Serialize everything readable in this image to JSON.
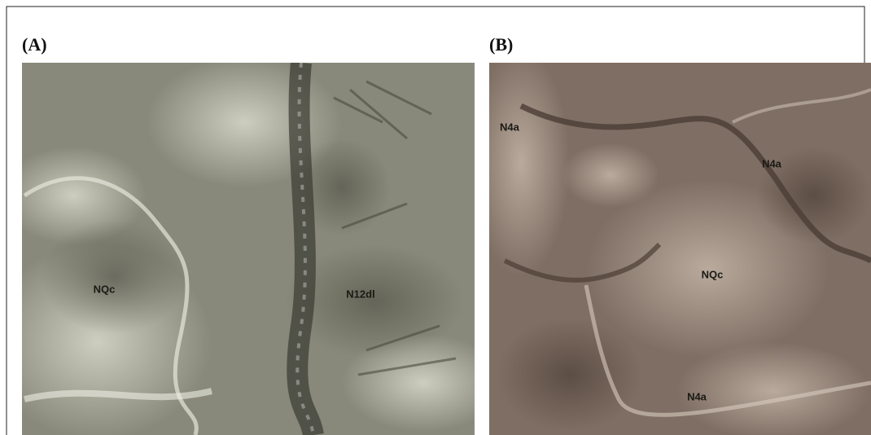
{
  "panels": [
    {
      "label": "(A)",
      "annotations": [
        "NQc",
        "N12dl"
      ]
    },
    {
      "label": "(B)",
      "annotations": [
        "N4a",
        "N4a",
        "NQc",
        "N4a"
      ]
    }
  ]
}
